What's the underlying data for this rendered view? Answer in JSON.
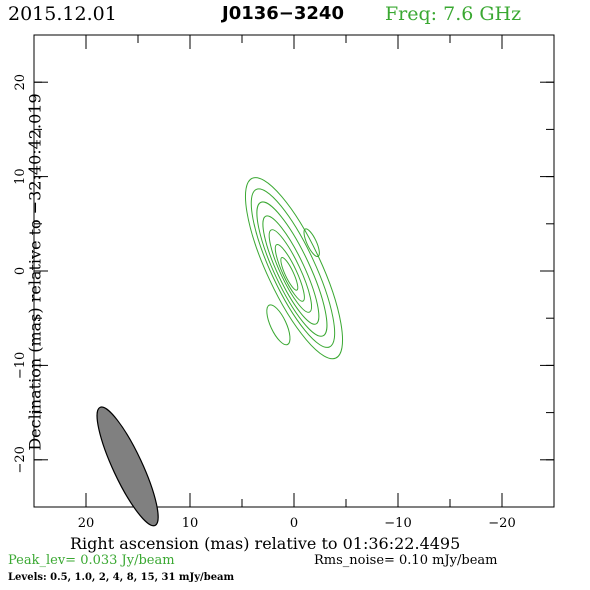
{
  "header": {
    "date": "2015.12.01",
    "source": "J0136−3240",
    "freq": "Freq: 7.6 GHz"
  },
  "axes": {
    "xlabel": "Right ascension (mas) relative to 01:36:22.4495",
    "ylabel": "Declination (mas) relative to −32:40:42.019"
  },
  "footer": {
    "peak": "Peak_lev=  0.033 Jy/beam",
    "rms": "Rms_noise= 0.10 mJy/beam",
    "levels": "Levels: 0.5, 1.0,    2,    4,    8,   15,   31 mJy/beam"
  },
  "colors": {
    "contour": "#3aa832",
    "beam_fill": "#808080",
    "text_accent": "#3aa832"
  },
  "chart_data": {
    "type": "contour",
    "xlim": [
      25,
      -25
    ],
    "ylim": [
      -25,
      25
    ],
    "x_ticks": [
      20,
      10,
      0,
      -10,
      -20
    ],
    "y_ticks": [
      20,
      10,
      0,
      -10,
      -20
    ],
    "x_tick_labels": [
      "20",
      "10",
      "0",
      "−10",
      "−20"
    ],
    "y_tick_labels": [
      "20",
      "10",
      "0",
      "−10",
      "−20"
    ],
    "contour_levels_mJy": [
      0.5,
      1.0,
      2,
      4,
      8,
      15,
      31
    ],
    "peak_Jy_per_beam": 0.033,
    "rms_mJy_per_beam": 0.1,
    "main_component": {
      "x": 0.3,
      "y": 0,
      "pa_deg": -25
    },
    "contours": [
      {
        "cx": 0.0,
        "cy": 0.3,
        "a": 10.5,
        "b": 2.6
      },
      {
        "cx": 0.1,
        "cy": 0.3,
        "a": 9.2,
        "b": 2.1
      },
      {
        "cx": 0.2,
        "cy": 0.2,
        "a": 7.8,
        "b": 1.7
      },
      {
        "cx": 0.3,
        "cy": 0.1,
        "a": 6.3,
        "b": 1.3
      },
      {
        "cx": 0.35,
        "cy": 0.0,
        "a": 4.8,
        "b": 0.95
      },
      {
        "cx": 0.4,
        "cy": -0.2,
        "a": 3.3,
        "b": 0.65
      },
      {
        "cx": 0.45,
        "cy": -0.3,
        "a": 1.9,
        "b": 0.4
      }
    ],
    "islands": [
      {
        "cx": -1.7,
        "cy": 3.0,
        "a": 1.6,
        "b": 0.45
      },
      {
        "cx": 1.5,
        "cy": -5.7,
        "a": 2.3,
        "b": 0.75
      }
    ],
    "beam": {
      "cx": 16.0,
      "cy": -20.7,
      "major": 6.9,
      "minor": 1.4,
      "pa_deg": -25
    }
  }
}
